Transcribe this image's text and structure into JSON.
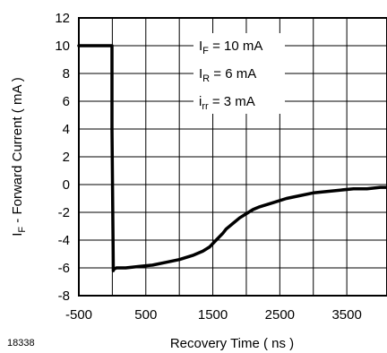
{
  "figure_id": "18338",
  "chart_data": {
    "type": "line",
    "title": "",
    "xlabel": "Recovery Time ( ns )",
    "ylabel": {
      "prefix": "I",
      "sub": "F",
      "suffix": " - Forward Current ( mA )"
    },
    "xlim": [
      -500,
      4100
    ],
    "ylim": [
      -8,
      12
    ],
    "x_ticks": [
      -500,
      500,
      1500,
      2500,
      3500
    ],
    "x_grid": [
      -500,
      0,
      500,
      1000,
      1500,
      2000,
      2500,
      3000,
      3500
    ],
    "y_ticks": [
      12,
      10,
      8,
      6,
      4,
      2,
      0,
      -2,
      -4,
      -6,
      -8
    ],
    "grid": true,
    "line_color": "#000000",
    "series": [
      {
        "x": [
          -500,
          -100,
          -5,
          -5,
          15,
          20,
          60,
          200,
          400,
          600,
          800,
          1000,
          1200,
          1350,
          1450,
          1550,
          1650,
          1700,
          1800,
          1900,
          2000,
          2100,
          2200,
          2400,
          2600,
          2800,
          3000,
          3200,
          3400,
          3600,
          3800,
          4000,
          4100
        ],
        "y": [
          10,
          10,
          10,
          4,
          -6.2,
          -6.1,
          -6.0,
          -6.0,
          -5.9,
          -5.8,
          -5.6,
          -5.4,
          -5.1,
          -4.8,
          -4.5,
          -4.0,
          -3.5,
          -3.2,
          -2.8,
          -2.4,
          -2.1,
          -1.8,
          -1.6,
          -1.3,
          -1.0,
          -0.8,
          -0.6,
          -0.5,
          -0.4,
          -0.3,
          -0.3,
          -0.2,
          -0.2
        ]
      }
    ],
    "annotations": [
      {
        "prefix": "I",
        "sub": "F",
        "suffix": " = 10 mA"
      },
      {
        "prefix": "I",
        "sub": "R",
        "suffix": " = 6 mA"
      },
      {
        "prefix": "i",
        "sub": "rr",
        "suffix": " = 3 mA"
      }
    ],
    "annotation_leaders": [
      {
        "y": 10
      },
      {
        "y": 8
      },
      {
        "y": 6
      }
    ]
  }
}
